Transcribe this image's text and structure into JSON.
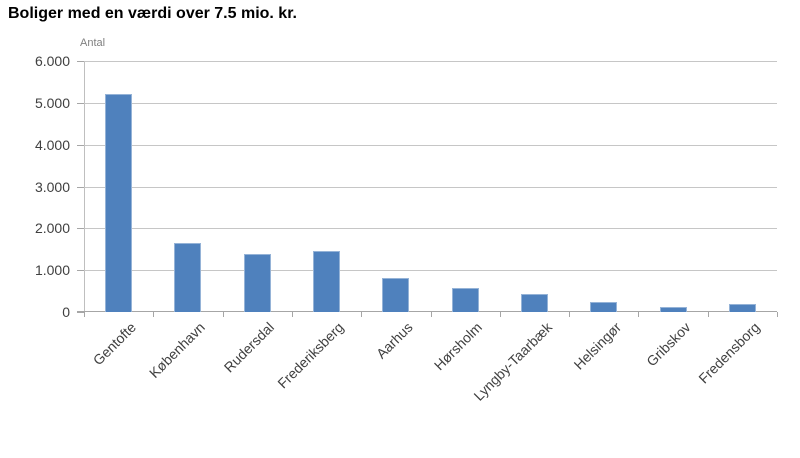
{
  "chart_data": {
    "type": "bar",
    "title": "Boliger med en værdi over 7.5 mio. kr.",
    "ylabel": "Antal",
    "xlabel": "",
    "categories": [
      "Gentofte",
      "København",
      "Rudersdal",
      "Frederiksberg",
      "Aarhus",
      "Hørsholm",
      "Lyngby-Taarbæk",
      "Helsingør",
      "Gribskov",
      "Fredensborg"
    ],
    "values": [
      5200,
      1640,
      1390,
      1450,
      820,
      580,
      420,
      250,
      110,
      180
    ],
    "ylim": [
      0,
      6000
    ],
    "ytick_interval": 1000,
    "ytick_labels": [
      "0",
      "1.000",
      "2.000",
      "3.000",
      "4.000",
      "5.000",
      "6.000"
    ],
    "grid": true,
    "legend": "none",
    "colors": {
      "bar_fill": "#4f81bd",
      "bar_border": "#95b3d7",
      "gridline": "#c6c6c6",
      "axis": "#a6a6a6",
      "tick_label": "#404040",
      "unit_label": "#7f7f7f",
      "title": "#000000"
    }
  }
}
